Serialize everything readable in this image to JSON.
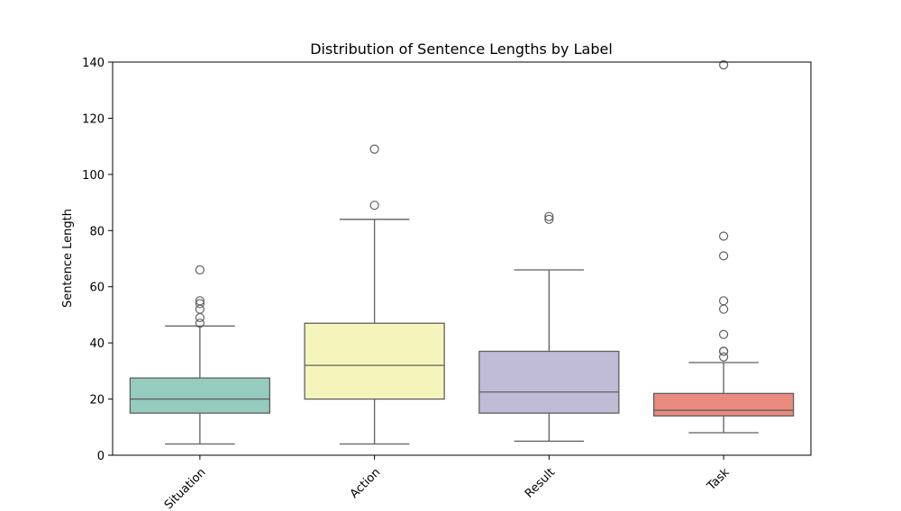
{
  "chart_data": {
    "type": "box",
    "title": "Distribution of Sentence Lengths by Label",
    "xlabel": "",
    "ylabel": "Sentence Length",
    "ylim": [
      0,
      140
    ],
    "yticks": [
      0,
      20,
      40,
      60,
      80,
      100,
      120,
      140
    ],
    "grid": false,
    "legend": "none",
    "categories": [
      "Situation",
      "Action",
      "Result",
      "Task"
    ],
    "boxes": [
      {
        "label": "Situation",
        "whisker_low": 4,
        "q1": 15,
        "median": 20,
        "q3": 27.5,
        "whisker_high": 46,
        "outliers": [
          47,
          49,
          52,
          54,
          55,
          66
        ],
        "color": "#96cbbf"
      },
      {
        "label": "Action",
        "whisker_low": 4,
        "q1": 20,
        "median": 32,
        "q3": 47,
        "whisker_high": 84,
        "outliers": [
          89,
          109
        ],
        "color": "#f5f5bb"
      },
      {
        "label": "Result",
        "whisker_low": 5,
        "q1": 15,
        "median": 22.5,
        "q3": 37,
        "whisker_high": 66,
        "outliers": [
          84,
          85
        ],
        "color": "#c0bcd7"
      },
      {
        "label": "Task",
        "whisker_low": 8,
        "q1": 14,
        "median": 16,
        "q3": 22,
        "whisker_high": 33,
        "outliers": [
          35,
          37,
          37,
          43,
          52,
          55,
          71,
          78,
          139
        ],
        "color": "#eb8a7f"
      }
    ]
  }
}
